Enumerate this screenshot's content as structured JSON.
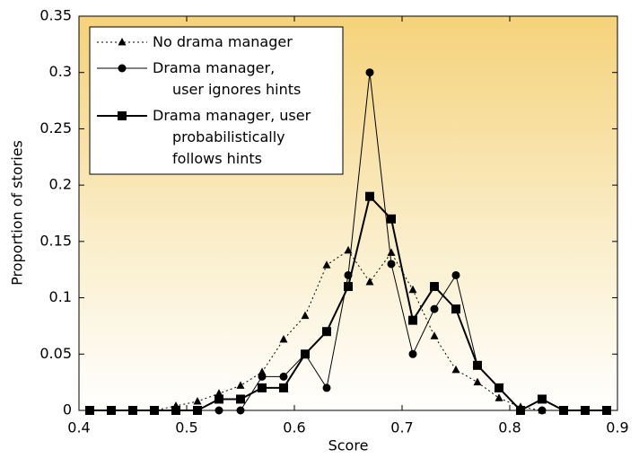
{
  "chart_data": {
    "type": "line",
    "x_label": "Score",
    "y_label": "Proportion of stories",
    "x": [
      0.41,
      0.43,
      0.45,
      0.47,
      0.49,
      0.51,
      0.53,
      0.55,
      0.57,
      0.59,
      0.61,
      0.63,
      0.65,
      0.67,
      0.69,
      0.71,
      0.73,
      0.75,
      0.77,
      0.79,
      0.81,
      0.83,
      0.85,
      0.87,
      0.89
    ],
    "series": [
      {
        "name": "No drama manager",
        "color": "#000000",
        "marker": "triangle",
        "dash": true,
        "width": 1,
        "values": [
          0,
          0,
          0,
          0,
          0.004,
          0.008,
          0.015,
          0.022,
          0.034,
          0.063,
          0.084,
          0.129,
          0.142,
          0.114,
          0.14,
          0.107,
          0.066,
          0.036,
          0.025,
          0.011,
          0.003,
          0,
          0,
          0,
          0
        ]
      },
      {
        "name": "Drama manager,\nuser ignores hints",
        "color": "#000000",
        "marker": "circle",
        "dash": false,
        "width": 1,
        "values": [
          0,
          0,
          0,
          0,
          0,
          0,
          0,
          0,
          0.03,
          0.03,
          0.05,
          0.02,
          0.12,
          0.3,
          0.13,
          0.05,
          0.09,
          0.12,
          0.04,
          0.02,
          0,
          0,
          0,
          0,
          0
        ]
      },
      {
        "name": "Drama manager, user\nprobabilistically\nfollows hints",
        "color": "#000000",
        "marker": "square",
        "dash": false,
        "width": 2,
        "values": [
          0,
          0,
          0,
          0,
          0,
          0,
          0.01,
          0.01,
          0.02,
          0.02,
          0.05,
          0.07,
          0.11,
          0.19,
          0.17,
          0.08,
          0.11,
          0.09,
          0.04,
          0.02,
          0,
          0.01,
          0,
          0,
          0
        ]
      }
    ],
    "xlim": [
      0.4,
      0.9
    ],
    "xticks": [
      0.4,
      0.5,
      0.6,
      0.7,
      0.8,
      0.9
    ],
    "ylim": [
      0,
      0.35
    ],
    "yticks": [
      0,
      0.05,
      0.1,
      0.15,
      0.2,
      0.25,
      0.3,
      0.35
    ],
    "legend": "upper left"
  }
}
